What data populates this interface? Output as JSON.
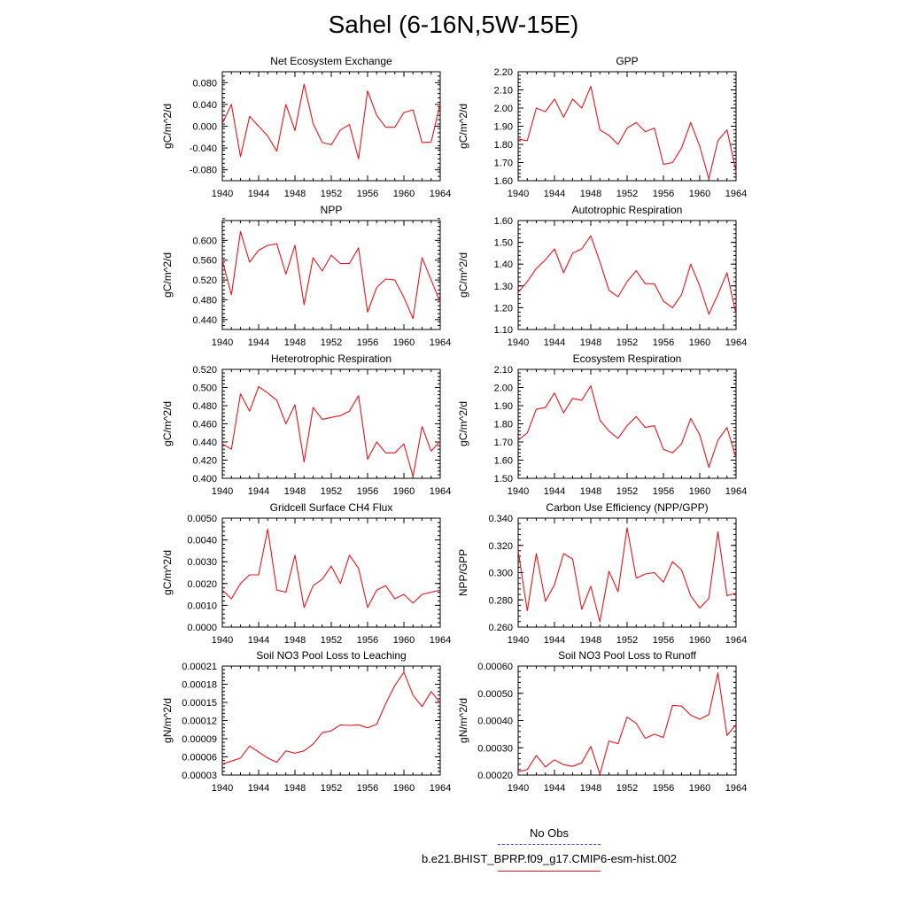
{
  "title": "Sahel (6-16N,5W-15E)",
  "chart_data": [
    {
      "type": "line",
      "title": "Net Ecosystem Exchange",
      "ylabel": "gC/m^2/d",
      "ylim": [
        -0.1,
        0.1
      ],
      "yticks": [
        "-0.080",
        "-0.040",
        "0.000",
        "0.040",
        "0.080"
      ],
      "ytick_values": [
        -0.08,
        -0.04,
        0.0,
        0.04,
        0.08
      ],
      "xlim": [
        1940,
        1964
      ],
      "xticks": [
        "1940",
        "1944",
        "1948",
        "1952",
        "1956",
        "1960",
        "1964"
      ],
      "x": [
        1940,
        1941,
        1942,
        1943,
        1944,
        1945,
        1946,
        1947,
        1948,
        1949,
        1950,
        1951,
        1952,
        1953,
        1954,
        1955,
        1956,
        1957,
        1958,
        1959,
        1960,
        1961,
        1962,
        1963,
        1964
      ],
      "series": [
        {
          "color": "#e8141b",
          "values": [
            0.005,
            0.04,
            -0.056,
            0.018,
            0.0,
            -0.018,
            -0.046,
            0.04,
            -0.008,
            0.077,
            0.005,
            -0.03,
            -0.034,
            -0.007,
            0.003,
            -0.06,
            0.065,
            0.02,
            -0.002,
            -0.002,
            0.025,
            0.03,
            -0.03,
            -0.029,
            0.042
          ]
        }
      ]
    },
    {
      "type": "line",
      "title": "GPP",
      "ylabel": "gC/m^2/d",
      "ylim": [
        1.6,
        2.2
      ],
      "yticks": [
        "1.60",
        "1.70",
        "1.80",
        "1.90",
        "2.00",
        "2.10",
        "2.20"
      ],
      "ytick_values": [
        1.6,
        1.7,
        1.8,
        1.9,
        2.0,
        2.1,
        2.2
      ],
      "xlim": [
        1940,
        1964
      ],
      "xticks": [
        "1940",
        "1944",
        "1948",
        "1952",
        "1956",
        "1960",
        "1964"
      ],
      "x": [
        1940,
        1941,
        1942,
        1943,
        1944,
        1945,
        1946,
        1947,
        1948,
        1949,
        1950,
        1951,
        1952,
        1953,
        1954,
        1955,
        1956,
        1957,
        1958,
        1959,
        1960,
        1961,
        1962,
        1963,
        1964
      ],
      "series": [
        {
          "color": "#e8141b",
          "values": [
            1.83,
            1.82,
            2.0,
            1.98,
            2.05,
            1.95,
            2.05,
            2.0,
            2.12,
            1.88,
            1.85,
            1.8,
            1.89,
            1.92,
            1.87,
            1.89,
            1.69,
            1.7,
            1.78,
            1.92,
            1.79,
            1.61,
            1.82,
            1.88,
            1.65
          ]
        }
      ]
    },
    {
      "type": "line",
      "title": "NPP",
      "ylabel": "gC/m^2/d",
      "ylim": [
        0.42,
        0.64
      ],
      "yticks": [
        "0.440",
        "0.480",
        "0.520",
        "0.560",
        "0.600"
      ],
      "ytick_values": [
        0.44,
        0.48,
        0.52,
        0.56,
        0.6
      ],
      "xlim": [
        1940,
        1964
      ],
      "xticks": [
        "1940",
        "1944",
        "1948",
        "1952",
        "1956",
        "1960",
        "1964"
      ],
      "x": [
        1940,
        1941,
        1942,
        1943,
        1944,
        1945,
        1946,
        1947,
        1948,
        1949,
        1950,
        1951,
        1952,
        1953,
        1954,
        1955,
        1956,
        1957,
        1958,
        1959,
        1960,
        1961,
        1962,
        1963,
        1964
      ],
      "series": [
        {
          "color": "#e8141b",
          "values": [
            0.56,
            0.49,
            0.618,
            0.556,
            0.58,
            0.59,
            0.593,
            0.532,
            0.59,
            0.47,
            0.565,
            0.538,
            0.57,
            0.553,
            0.553,
            0.585,
            0.455,
            0.505,
            0.522,
            0.52,
            0.485,
            0.442,
            0.565,
            0.52,
            0.475
          ]
        }
      ]
    },
    {
      "type": "line",
      "title": "Autotrophic Respiration",
      "ylabel": "gC/m^2/d",
      "ylim": [
        1.1,
        1.6
      ],
      "yticks": [
        "1.10",
        "1.20",
        "1.30",
        "1.40",
        "1.50",
        "1.60"
      ],
      "ytick_values": [
        1.1,
        1.2,
        1.3,
        1.4,
        1.5,
        1.6
      ],
      "xlim": [
        1940,
        1964
      ],
      "xticks": [
        "1940",
        "1944",
        "1948",
        "1952",
        "1956",
        "1960",
        "1964"
      ],
      "x": [
        1940,
        1941,
        1942,
        1943,
        1944,
        1945,
        1946,
        1947,
        1948,
        1949,
        1950,
        1951,
        1952,
        1953,
        1954,
        1955,
        1956,
        1957,
        1958,
        1959,
        1960,
        1961,
        1962,
        1963,
        1964
      ],
      "series": [
        {
          "color": "#e8141b",
          "values": [
            1.27,
            1.32,
            1.38,
            1.42,
            1.47,
            1.36,
            1.45,
            1.47,
            1.53,
            1.41,
            1.28,
            1.25,
            1.32,
            1.37,
            1.31,
            1.31,
            1.23,
            1.2,
            1.26,
            1.4,
            1.3,
            1.17,
            1.26,
            1.36,
            1.17
          ]
        }
      ]
    },
    {
      "type": "line",
      "title": "Heterotrophic Respiration",
      "ylabel": "gC/m^2/d",
      "ylim": [
        0.4,
        0.52
      ],
      "yticks": [
        "0.400",
        "0.420",
        "0.440",
        "0.460",
        "0.480",
        "0.500",
        "0.520"
      ],
      "ytick_values": [
        0.4,
        0.42,
        0.44,
        0.46,
        0.48,
        0.5,
        0.52
      ],
      "xlim": [
        1940,
        1964
      ],
      "xticks": [
        "1940",
        "1944",
        "1948",
        "1952",
        "1956",
        "1960",
        "1964"
      ],
      "x": [
        1940,
        1941,
        1942,
        1943,
        1944,
        1945,
        1946,
        1947,
        1948,
        1949,
        1950,
        1951,
        1952,
        1953,
        1954,
        1955,
        1956,
        1957,
        1958,
        1959,
        1960,
        1961,
        1962,
        1963,
        1964
      ],
      "series": [
        {
          "color": "#e8141b",
          "values": [
            0.438,
            0.432,
            0.493,
            0.474,
            0.501,
            0.494,
            0.486,
            0.46,
            0.481,
            0.418,
            0.478,
            0.465,
            0.467,
            0.469,
            0.474,
            0.491,
            0.421,
            0.44,
            0.428,
            0.428,
            0.438,
            0.402,
            0.457,
            0.43,
            0.441
          ]
        }
      ]
    },
    {
      "type": "line",
      "title": "Ecosystem Respiration",
      "ylabel": "gC/m^2/d",
      "ylim": [
        1.5,
        2.1
      ],
      "yticks": [
        "1.50",
        "1.60",
        "1.70",
        "1.80",
        "1.90",
        "2.00",
        "2.10"
      ],
      "ytick_values": [
        1.5,
        1.6,
        1.7,
        1.8,
        1.9,
        2.0,
        2.1
      ],
      "xlim": [
        1940,
        1964
      ],
      "xticks": [
        "1940",
        "1944",
        "1948",
        "1952",
        "1956",
        "1960",
        "1964"
      ],
      "x": [
        1940,
        1941,
        1942,
        1943,
        1944,
        1945,
        1946,
        1947,
        1948,
        1949,
        1950,
        1951,
        1952,
        1953,
        1954,
        1955,
        1956,
        1957,
        1958,
        1959,
        1960,
        1961,
        1962,
        1963,
        1964
      ],
      "series": [
        {
          "color": "#e8141b",
          "values": [
            1.71,
            1.75,
            1.88,
            1.89,
            1.97,
            1.86,
            1.94,
            1.93,
            2.01,
            1.82,
            1.76,
            1.72,
            1.79,
            1.84,
            1.78,
            1.79,
            1.66,
            1.64,
            1.69,
            1.83,
            1.74,
            1.56,
            1.71,
            1.78,
            1.61
          ]
        }
      ]
    },
    {
      "type": "line",
      "title": "Gridcell Surface CH4 Flux",
      "ylabel": "gC/m^2/d",
      "ylim": [
        0.0,
        0.005
      ],
      "yticks": [
        "0.0000",
        "0.0010",
        "0.0020",
        "0.0030",
        "0.0040",
        "0.0050"
      ],
      "ytick_values": [
        0.0,
        0.001,
        0.002,
        0.003,
        0.004,
        0.005
      ],
      "xlim": [
        1940,
        1964
      ],
      "xticks": [
        "1940",
        "1944",
        "1948",
        "1952",
        "1956",
        "1960",
        "1964"
      ],
      "x": [
        1940,
        1941,
        1942,
        1943,
        1944,
        1945,
        1946,
        1947,
        1948,
        1949,
        1950,
        1951,
        1952,
        1953,
        1954,
        1955,
        1956,
        1957,
        1958,
        1959,
        1960,
        1961,
        1962,
        1963,
        1964
      ],
      "series": [
        {
          "color": "#e8141b",
          "values": [
            0.0017,
            0.0013,
            0.002,
            0.0024,
            0.0024,
            0.0045,
            0.0017,
            0.0016,
            0.0033,
            0.0009,
            0.0019,
            0.0022,
            0.0028,
            0.002,
            0.0033,
            0.0027,
            0.0009,
            0.0017,
            0.0019,
            0.0013,
            0.0015,
            0.0011,
            0.0015,
            0.0016,
            0.0017
          ]
        }
      ]
    },
    {
      "type": "line",
      "title": "Carbon Use Efficiency (NPP/GPP)",
      "ylabel": "NPP/GPP",
      "ylim": [
        0.26,
        0.34
      ],
      "yticks": [
        "0.260",
        "0.280",
        "0.300",
        "0.320",
        "0.340"
      ],
      "ytick_values": [
        0.26,
        0.28,
        0.3,
        0.32,
        0.34
      ],
      "xlim": [
        1940,
        1964
      ],
      "xticks": [
        "1940",
        "1944",
        "1948",
        "1952",
        "1956",
        "1960",
        "1964"
      ],
      "x": [
        1940,
        1941,
        1942,
        1943,
        1944,
        1945,
        1946,
        1947,
        1948,
        1949,
        1950,
        1951,
        1952,
        1953,
        1954,
        1955,
        1956,
        1957,
        1958,
        1959,
        1960,
        1961,
        1962,
        1963,
        1964
      ],
      "series": [
        {
          "color": "#e8141b",
          "values": [
            0.316,
            0.272,
            0.314,
            0.279,
            0.291,
            0.314,
            0.31,
            0.273,
            0.29,
            0.264,
            0.301,
            0.286,
            0.333,
            0.296,
            0.299,
            0.3,
            0.293,
            0.308,
            0.302,
            0.283,
            0.274,
            0.281,
            0.33,
            0.283,
            0.285
          ]
        }
      ]
    },
    {
      "type": "line",
      "title": "Soil NO3 Pool Loss to Leaching",
      "ylabel": "gN/m^2/d",
      "ylim": [
        3e-05,
        0.00021
      ],
      "yticks": [
        "0.00003",
        "0.00006",
        "0.00009",
        "0.00012",
        "0.00015",
        "0.00018",
        "0.00021"
      ],
      "ytick_values": [
        3e-05,
        6e-05,
        9e-05,
        0.00012,
        0.00015,
        0.00018,
        0.00021
      ],
      "xlim": [
        1940,
        1964
      ],
      "xticks": [
        "1940",
        "1944",
        "1948",
        "1952",
        "1956",
        "1960",
        "1964"
      ],
      "x": [
        1940,
        1941,
        1942,
        1943,
        1944,
        1945,
        1946,
        1947,
        1948,
        1949,
        1950,
        1951,
        1952,
        1953,
        1954,
        1955,
        1956,
        1957,
        1958,
        1959,
        1960,
        1961,
        1962,
        1963,
        1964
      ],
      "series": [
        {
          "color": "#e8141b",
          "values": [
            4.8e-05,
            5.3e-05,
            5.8e-05,
            7.8e-05,
            6.8e-05,
            5.8e-05,
            5.1e-05,
            7e-05,
            6.6e-05,
            7e-05,
            8.1e-05,
            0.0001,
            0.000103,
            0.000113,
            0.000112,
            0.000113,
            0.000108,
            0.000114,
            0.000148,
            0.000178,
            0.0002,
            0.000162,
            0.000143,
            0.000168,
            0.000149
          ]
        }
      ]
    },
    {
      "type": "line",
      "title": "Soil NO3 Pool Loss to Runoff",
      "ylabel": "gN/m^2/d",
      "ylim": [
        0.0002,
        0.0006
      ],
      "yticks": [
        "0.00020",
        "0.00030",
        "0.00040",
        "0.00050",
        "0.00060"
      ],
      "ytick_values": [
        0.0002,
        0.0003,
        0.0004,
        0.0005,
        0.0006
      ],
      "xlim": [
        1940,
        1964
      ],
      "xticks": [
        "1940",
        "1944",
        "1948",
        "1952",
        "1956",
        "1960",
        "1964"
      ],
      "x": [
        1940,
        1941,
        1942,
        1943,
        1944,
        1945,
        1946,
        1947,
        1948,
        1949,
        1950,
        1951,
        1952,
        1953,
        1954,
        1955,
        1956,
        1957,
        1958,
        1959,
        1960,
        1961,
        1962,
        1963,
        1964
      ],
      "series": [
        {
          "color": "#e8141b",
          "values": [
            0.000212,
            0.00022,
            0.000272,
            0.00023,
            0.000256,
            0.000238,
            0.000232,
            0.000245,
            0.000305,
            0.000203,
            0.000325,
            0.000315,
            0.000413,
            0.00039,
            0.000335,
            0.00035,
            0.000338,
            0.000456,
            0.000453,
            0.00042,
            0.000405,
            0.000422,
            0.000575,
            0.000345,
            0.000385
          ]
        }
      ]
    }
  ],
  "legend": [
    {
      "label": "No Obs",
      "color": "#4a4ad0",
      "style": "dashed"
    },
    {
      "label": "b.e21.BHIST_BPRP.f09_g17.CMIP6-esm-hist.002",
      "color": "#e8141b",
      "style": "solid"
    }
  ]
}
